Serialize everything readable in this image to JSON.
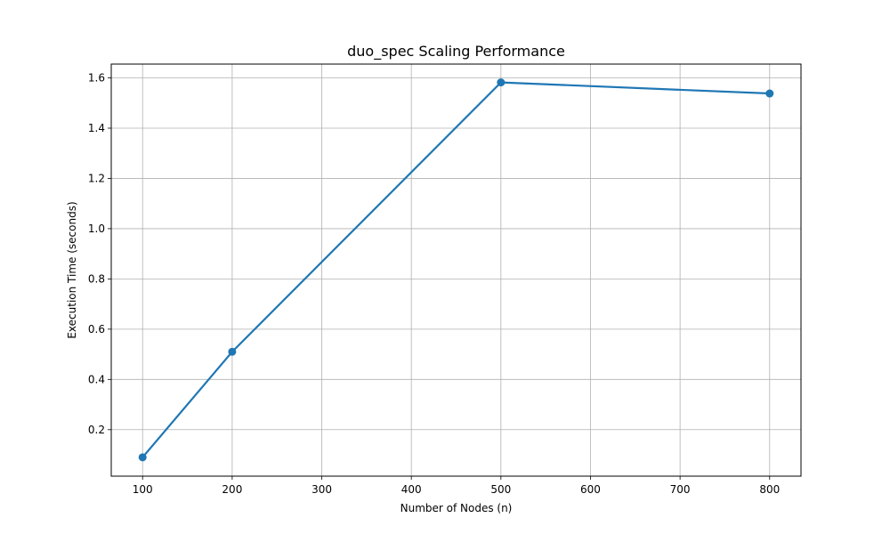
{
  "chart_data": {
    "type": "line",
    "title": "duo_spec Scaling Performance",
    "xlabel": "Number of Nodes (n)",
    "ylabel": "Execution Time (seconds)",
    "xlim": [
      65,
      835
    ],
    "ylim": [
      0.015,
      1.655
    ],
    "xticks": [
      100,
      200,
      300,
      400,
      500,
      600,
      700,
      800
    ],
    "xtick_labels": [
      "100",
      "200",
      "300",
      "400",
      "500",
      "600",
      "700",
      "800"
    ],
    "yticks": [
      0.2,
      0.4,
      0.6,
      0.8,
      1.0,
      1.2,
      1.4,
      1.6
    ],
    "ytick_labels": [
      "0.2",
      "0.4",
      "0.6",
      "0.8",
      "1.0",
      "1.2",
      "1.4",
      "1.6"
    ],
    "grid": true,
    "series": [
      {
        "x": [
          100,
          200,
          500,
          800
        ],
        "values": [
          0.09,
          0.51,
          1.582,
          1.538
        ],
        "color": "#1f77b4",
        "marker": "circle"
      }
    ]
  }
}
